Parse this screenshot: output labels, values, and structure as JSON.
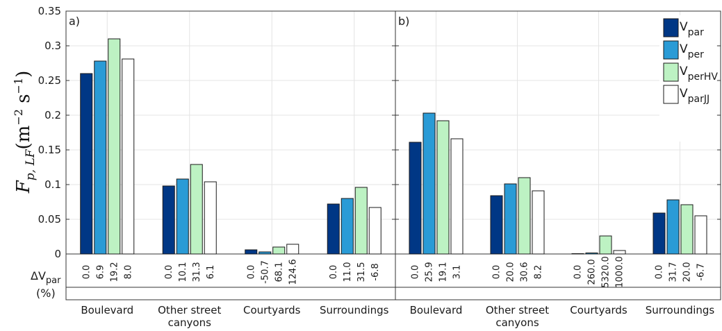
{
  "y_axis": {
    "label_main": "F",
    "label_sub": "p, LF",
    "label_units_pre": "(m",
    "label_units_exp1": "−2",
    "label_units_mid": " s",
    "label_units_exp2": "−1",
    "label_units_post": ")",
    "ticks": [
      "0",
      "0.05",
      "0.1",
      "0.15",
      "0.2",
      "0.25",
      "0.3",
      "0.35"
    ]
  },
  "delta_label": {
    "main": "ΔV",
    "sub": "par",
    "unit": "(%)"
  },
  "legend": [
    {
      "main": "V",
      "sub": "par",
      "color": "#003785"
    },
    {
      "main": "V",
      "sub": "per",
      "color": "#2a9bd6"
    },
    {
      "main": "V",
      "sub": "perHV",
      "color": "#bdf2c3"
    },
    {
      "main": "V",
      "sub": "parJJ",
      "color": "#ffffff"
    }
  ],
  "chart_data": [
    {
      "type": "bar",
      "panel_label": "a)",
      "categories": [
        [
          "Boulevard"
        ],
        [
          "Other street",
          "canyons"
        ],
        [
          "Courtyards"
        ],
        [
          "Surroundings"
        ]
      ],
      "ylim": [
        0,
        0.35
      ],
      "grid": true,
      "series": [
        {
          "name": "V_par",
          "values": [
            0.26,
            0.098,
            0.006,
            0.072
          ],
          "delta": [
            "0.0",
            "0.0",
            "0.0",
            "0.0"
          ]
        },
        {
          "name": "V_per",
          "values": [
            0.278,
            0.108,
            0.003,
            0.08
          ],
          "delta": [
            "6.9",
            "10.1",
            "-50.7",
            "11.0"
          ]
        },
        {
          "name": "V_perHV",
          "values": [
            0.31,
            0.129,
            0.01,
            0.096
          ],
          "delta": [
            "19.2",
            "31.3",
            "68.1",
            "31.5"
          ]
        },
        {
          "name": "V_parJJ",
          "values": [
            0.281,
            0.104,
            0.014,
            0.067
          ],
          "delta": [
            "8.0",
            "6.1",
            "124.6",
            "-6.8"
          ]
        }
      ]
    },
    {
      "type": "bar",
      "panel_label": "b)",
      "categories": [
        [
          "Boulevard"
        ],
        [
          "Other street",
          "canyons"
        ],
        [
          "Courtyards"
        ],
        [
          "Surroundings"
        ]
      ],
      "ylim": [
        0,
        0.35
      ],
      "grid": true,
      "series": [
        {
          "name": "V_par",
          "values": [
            0.161,
            0.084,
            0.0005,
            0.059
          ],
          "delta": [
            "0.0",
            "0.0",
            "0.0",
            "0.0"
          ]
        },
        {
          "name": "V_per",
          "values": [
            0.203,
            0.101,
            0.0015,
            0.078
          ],
          "delta": [
            "25.9",
            "20.0",
            "260.0",
            "31.7"
          ]
        },
        {
          "name": "V_perHV",
          "values": [
            0.192,
            0.11,
            0.026,
            0.071
          ],
          "delta": [
            "19.1",
            "30.6",
            "5320.0",
            "20.0"
          ]
        },
        {
          "name": "V_parJJ",
          "values": [
            0.166,
            0.091,
            0.005,
            0.055
          ],
          "delta": [
            "3.1",
            "8.2",
            "1000.0",
            "-6.7"
          ]
        }
      ]
    }
  ]
}
